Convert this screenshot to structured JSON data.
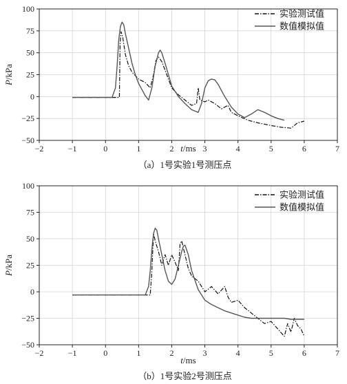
{
  "chart_data": [
    {
      "type": "line",
      "caption": "（a）1号实验1号测压点",
      "xlabel_var": "t",
      "xlabel_unit": "/ms",
      "ylabel_var": "P",
      "ylabel_unit": "/kPa",
      "xlim": [
        -2,
        7
      ],
      "ylim": [
        -50,
        100
      ],
      "xticks": [
        -2,
        -1,
        0,
        1,
        2,
        3,
        4,
        5,
        6,
        7
      ],
      "yticks": [
        -50,
        -25,
        0,
        25,
        50,
        75,
        100
      ],
      "grid": true,
      "legend": "top-right",
      "series": [
        {
          "name": "实验测试值",
          "style": "dashdot",
          "color": "#111111",
          "x": [
            -1.0,
            0.42,
            0.44,
            0.47,
            0.52,
            0.6,
            0.7,
            0.8,
            1.0,
            1.2,
            1.35,
            1.45,
            1.52,
            1.6,
            1.7,
            1.8,
            2.0,
            2.2,
            2.4,
            2.6,
            2.75,
            2.8,
            2.85,
            3.0,
            3.1,
            3.3,
            3.5,
            3.7,
            3.8,
            4.0,
            4.3,
            4.6,
            5.0,
            5.3,
            5.6,
            5.8,
            6.0
          ],
          "y": [
            -1,
            -1,
            60,
            74,
            68,
            48,
            35,
            28,
            20,
            16,
            10,
            25,
            41,
            45,
            40,
            30,
            10,
            2,
            -4,
            -10,
            -8,
            10,
            -4,
            -6,
            -4,
            -8,
            -14,
            -10,
            -18,
            -22,
            -27,
            -30,
            -33,
            -35,
            -36,
            -30,
            -28
          ]
        },
        {
          "name": "数值模拟值",
          "style": "solid",
          "color": "#555555",
          "x": [
            -1.0,
            0.2,
            0.3,
            0.35,
            0.4,
            0.45,
            0.5,
            0.55,
            0.6,
            0.7,
            0.8,
            0.9,
            1.0,
            1.1,
            1.2,
            1.3,
            1.4,
            1.5,
            1.6,
            1.65,
            1.7,
            1.8,
            1.9,
            2.0,
            2.2,
            2.4,
            2.6,
            2.8,
            2.9,
            3.0,
            3.1,
            3.2,
            3.3,
            3.4,
            3.6,
            3.8,
            4.0,
            4.2,
            4.4,
            4.6,
            4.8,
            5.0,
            5.2,
            5.4
          ],
          "y": [
            -1,
            -1,
            10,
            35,
            65,
            80,
            85,
            82,
            72,
            55,
            38,
            25,
            15,
            8,
            1,
            -4,
            10,
            35,
            50,
            53,
            50,
            38,
            25,
            12,
            0,
            -8,
            -15,
            -18,
            -8,
            10,
            18,
            20,
            19,
            14,
            0,
            -12,
            -20,
            -24,
            -20,
            -15,
            -18,
            -22,
            -25,
            -27
          ]
        }
      ]
    },
    {
      "type": "line",
      "caption": "（b）1号实验2号测压点",
      "xlabel_var": "t",
      "xlabel_unit": "/ms",
      "ylabel_var": "P",
      "ylabel_unit": "/kPa",
      "xlim": [
        -2,
        7
      ],
      "ylim": [
        -50,
        100
      ],
      "xticks": [
        -2,
        -1,
        0,
        1,
        2,
        3,
        4,
        5,
        6,
        7
      ],
      "yticks": [
        -50,
        -25,
        0,
        25,
        50,
        75,
        100
      ],
      "grid": true,
      "legend": "top-right",
      "series": [
        {
          "name": "实验测试值",
          "style": "dashdot",
          "color": "#111111",
          "x": [
            -1.0,
            1.35,
            1.4,
            1.45,
            1.5,
            1.6,
            1.7,
            1.8,
            1.9,
            2.0,
            2.1,
            2.2,
            2.25,
            2.3,
            2.4,
            2.5,
            2.6,
            2.8,
            3.0,
            3.2,
            3.4,
            3.6,
            3.7,
            3.8,
            4.0,
            4.2,
            4.4,
            4.6,
            4.8,
            5.0,
            5.2,
            5.4,
            5.5,
            5.6,
            5.7,
            5.8,
            5.9,
            6.0
          ],
          "y": [
            -3,
            -3,
            20,
            55,
            48,
            38,
            25,
            35,
            25,
            35,
            28,
            20,
            45,
            48,
            35,
            22,
            15,
            10,
            0,
            5,
            -2,
            5,
            -5,
            -10,
            -8,
            -15,
            -20,
            -25,
            -30,
            -28,
            -35,
            -42,
            -30,
            -38,
            -25,
            -32,
            -35,
            -42
          ]
        },
        {
          "name": "数值模拟值",
          "style": "solid",
          "color": "#555555",
          "x": [
            -1.0,
            1.2,
            1.3,
            1.35,
            1.4,
            1.45,
            1.5,
            1.55,
            1.6,
            1.7,
            1.8,
            1.9,
            2.0,
            2.1,
            2.2,
            2.3,
            2.35,
            2.4,
            2.5,
            2.6,
            2.8,
            3.0,
            3.2,
            3.4,
            3.6,
            3.8,
            4.0,
            4.2,
            4.4,
            4.6,
            4.8,
            5.0,
            5.2,
            5.4,
            5.6,
            5.8,
            6.0
          ],
          "y": [
            -3,
            -3,
            5,
            20,
            40,
            55,
            60,
            58,
            50,
            35,
            20,
            10,
            7,
            12,
            25,
            38,
            43,
            44,
            35,
            20,
            2,
            -8,
            -12,
            -15,
            -18,
            -20,
            -22,
            -24,
            -25,
            -25,
            -25,
            -25,
            -25,
            -25,
            -26,
            -26,
            -26
          ]
        }
      ]
    }
  ]
}
